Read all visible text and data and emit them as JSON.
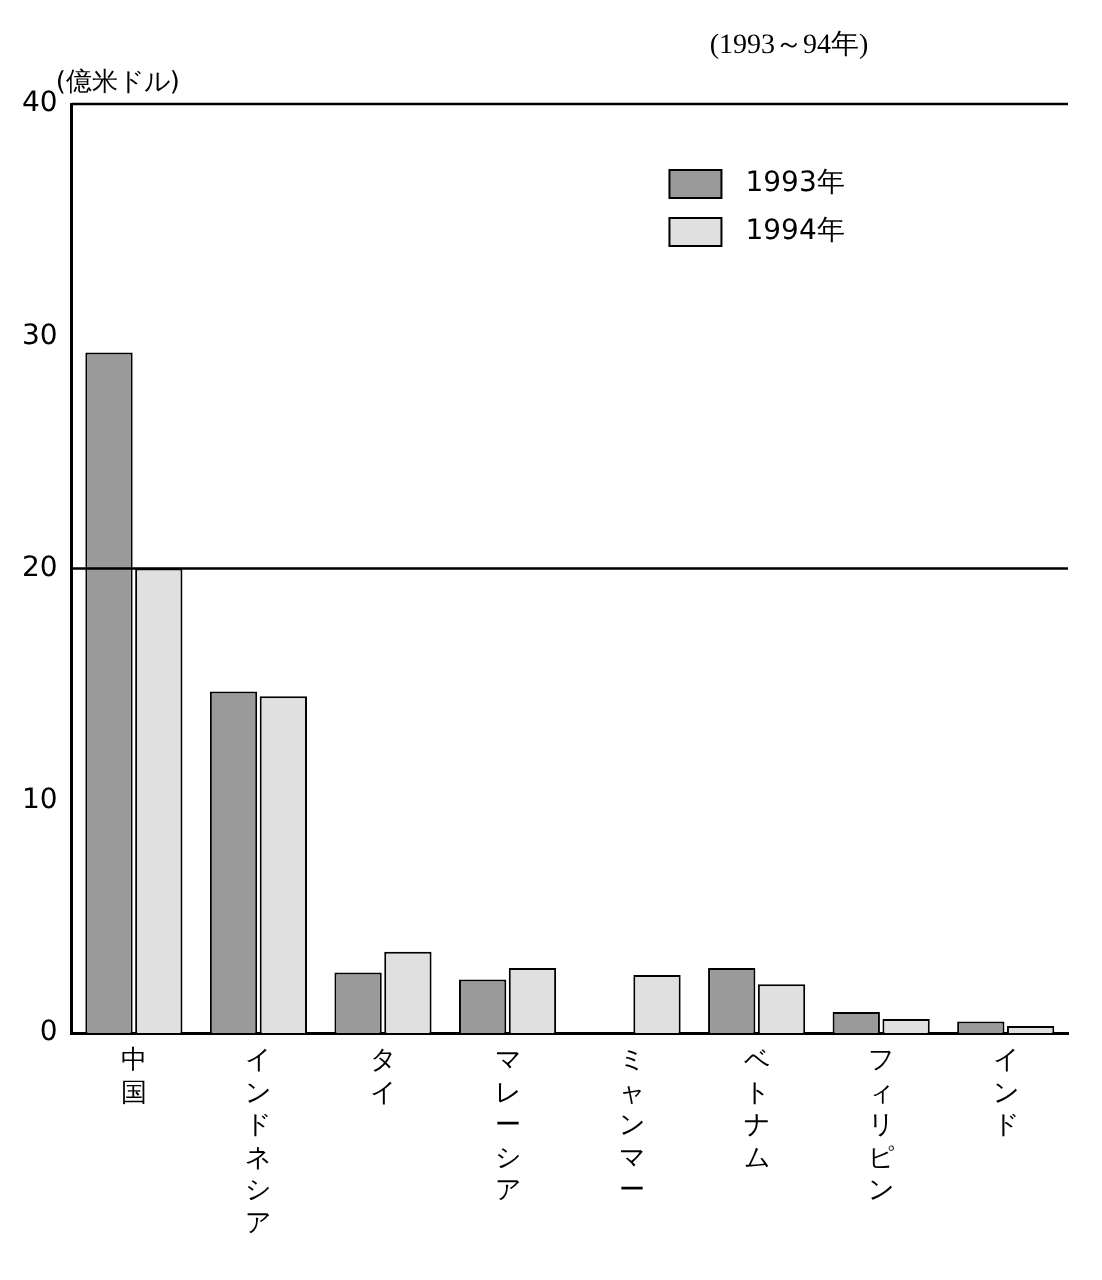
{
  "chart_data": {
    "type": "bar",
    "subtitle": "(1993～94年)",
    "ylabel": "(億米ドル)",
    "categories": [
      "中国",
      "インドネシア",
      "タイ",
      "マレーシア",
      "ミャンマー",
      "ベトナム",
      "フィリピン",
      "インド"
    ],
    "series": [
      {
        "name": "1993年",
        "color": "#9a9a9a",
        "values": [
          29.3,
          14.7,
          2.6,
          2.3,
          null,
          2.8,
          0.9,
          0.5
        ]
      },
      {
        "name": "1994年",
        "color": "#e0e0e0",
        "values": [
          20.0,
          14.5,
          3.5,
          2.8,
          2.5,
          2.1,
          0.6,
          0.3
        ]
      }
    ],
    "ylim": [
      0,
      40
    ],
    "yticks": [
      0,
      10,
      20,
      30,
      40
    ],
    "ref_lines": [
      {
        "axis": "y",
        "value": 20,
        "color": "#000000"
      }
    ],
    "legend": "top right"
  }
}
